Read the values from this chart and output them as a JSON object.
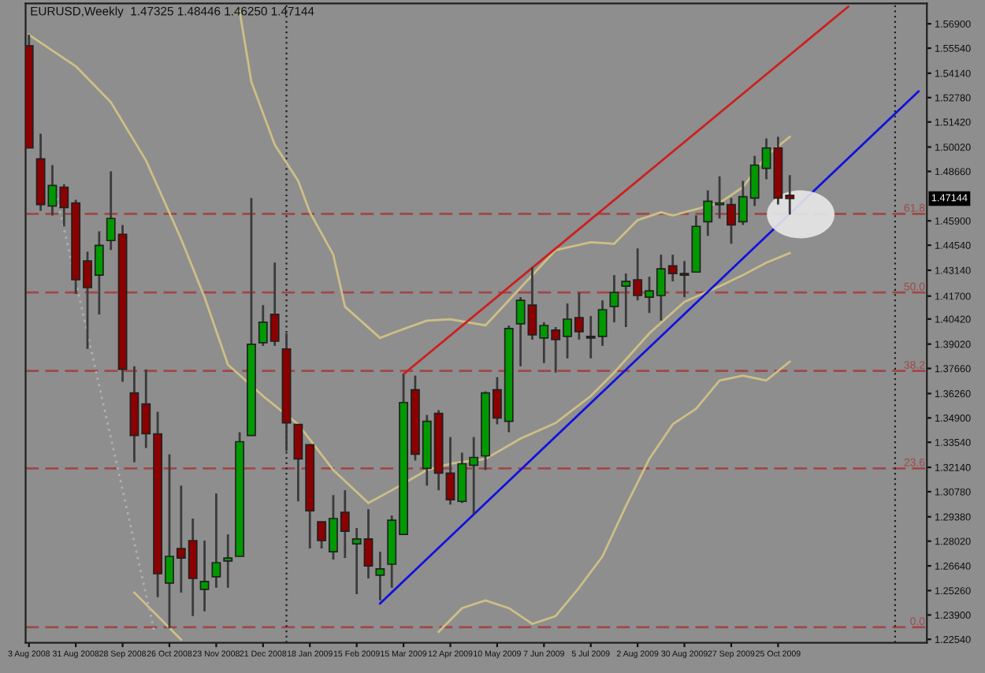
{
  "chart_data": {
    "type": "candlestick",
    "title": "EURUSD,Weekly  1.47325 1.48446 1.46250 1.47144",
    "x": [
      "2008-08-03",
      "2008-08-10",
      "2008-08-17",
      "2008-08-24",
      "2008-08-31",
      "2008-09-07",
      "2008-09-14",
      "2008-09-21",
      "2008-09-28",
      "2008-10-05",
      "2008-10-12",
      "2008-10-19",
      "2008-10-26",
      "2008-11-02",
      "2008-11-09",
      "2008-11-16",
      "2008-11-23",
      "2008-11-30",
      "2008-12-07",
      "2008-12-14",
      "2008-12-21",
      "2008-12-28",
      "2009-01-04",
      "2009-01-11",
      "2009-01-18",
      "2009-01-25",
      "2009-02-01",
      "2009-02-08",
      "2009-02-15",
      "2009-02-22",
      "2009-03-01",
      "2009-03-08",
      "2009-03-15",
      "2009-03-22",
      "2009-03-29",
      "2009-04-05",
      "2009-04-12",
      "2009-04-19",
      "2009-04-26",
      "2009-05-03",
      "2009-05-10",
      "2009-05-17",
      "2009-05-24",
      "2009-05-31",
      "2009-06-07",
      "2009-06-14",
      "2009-06-21",
      "2009-06-28",
      "2009-07-05",
      "2009-07-12",
      "2009-07-19",
      "2009-07-26",
      "2009-08-02",
      "2009-08-09",
      "2009-08-16",
      "2009-08-23",
      "2009-08-30",
      "2009-09-06",
      "2009-09-13",
      "2009-09-20",
      "2009-09-27",
      "2009-10-04",
      "2009-10-11",
      "2009-10-18",
      "2009-10-25",
      "2009-11-01"
    ],
    "ohlc": [
      [
        1.5567,
        1.5629,
        1.4997,
        1.4997
      ],
      [
        1.4936,
        1.5076,
        1.4646,
        1.4681
      ],
      [
        1.4673,
        1.4901,
        1.462,
        1.4787
      ],
      [
        1.4778,
        1.4795,
        1.4559,
        1.4664
      ],
      [
        1.469,
        1.4708,
        1.4182,
        1.4261
      ],
      [
        1.4366,
        1.4418,
        1.3875,
        1.4217
      ],
      [
        1.4287,
        1.4532,
        1.4068,
        1.4453
      ],
      [
        1.448,
        1.4866,
        1.4427,
        1.4603
      ],
      [
        1.4515,
        1.4567,
        1.3691,
        1.3761
      ],
      [
        1.3629,
        1.3778,
        1.3243,
        1.3392
      ],
      [
        1.3568,
        1.3761,
        1.3322,
        1.3401
      ],
      [
        1.3401,
        1.3524,
        1.2489,
        1.2621
      ],
      [
        1.2568,
        1.3287,
        1.2314,
        1.2717
      ],
      [
        1.2761,
        1.3112,
        1.2515,
        1.2708
      ],
      [
        1.2805,
        1.2928,
        1.2384,
        1.2594
      ],
      [
        1.2533,
        1.2805,
        1.241,
        1.2577
      ],
      [
        1.2603,
        1.3068,
        1.2542,
        1.2682
      ],
      [
        1.2691,
        1.284,
        1.2542,
        1.2708
      ],
      [
        1.2717,
        1.341,
        1.2717,
        1.3357
      ],
      [
        1.3392,
        1.4717,
        1.3392,
        1.3901
      ],
      [
        1.391,
        1.412,
        1.3892,
        1.4024
      ],
      [
        1.4068,
        1.4357,
        1.3892,
        1.3918
      ],
      [
        1.3875,
        1.3962,
        1.3305,
        1.3462
      ],
      [
        1.3454,
        1.3454,
        1.3024,
        1.3261
      ],
      [
        1.334,
        1.334,
        1.2761,
        1.2971
      ],
      [
        1.291,
        1.291,
        1.2761,
        1.2805
      ],
      [
        1.2743,
        1.3059,
        1.2699,
        1.2928
      ],
      [
        1.2963,
        1.3086,
        1.2708,
        1.2857
      ],
      [
        1.2787,
        1.2875,
        1.2506,
        1.2814
      ],
      [
        1.2814,
        1.298,
        1.2594,
        1.2664
      ],
      [
        1.2612,
        1.2743,
        1.2471,
        1.2647
      ],
      [
        1.2673,
        1.2945,
        1.2542,
        1.2919
      ],
      [
        1.284,
        1.3734,
        1.284,
        1.3576
      ],
      [
        1.3647,
        1.3726,
        1.3252,
        1.3287
      ],
      [
        1.3208,
        1.3506,
        1.3112,
        1.3471
      ],
      [
        1.3515,
        1.3533,
        1.3086,
        1.3182
      ],
      [
        1.3182,
        1.3383,
        1.3006,
        1.3033
      ],
      [
        1.3024,
        1.3296,
        1.3015,
        1.3234
      ],
      [
        1.3226,
        1.3383,
        1.2954,
        1.3269
      ],
      [
        1.3278,
        1.3638,
        1.3199,
        1.3629
      ],
      [
        1.3647,
        1.3717,
        1.3454,
        1.3489
      ],
      [
        1.3471,
        1.4006,
        1.341,
        1.3989
      ],
      [
        1.4015,
        1.4164,
        1.3778,
        1.4146
      ],
      [
        1.412,
        1.4331,
        1.3927,
        1.3954
      ],
      [
        1.3936,
        1.4024,
        1.3796,
        1.4006
      ],
      [
        1.398,
        1.3997,
        1.3743,
        1.3927
      ],
      [
        1.3945,
        1.4129,
        1.3822,
        1.4041
      ],
      [
        1.405,
        1.419,
        1.3927,
        1.3971
      ],
      [
        1.3945,
        1.4059,
        1.3822,
        1.3936
      ],
      [
        1.3945,
        1.4146,
        1.3892,
        1.4094
      ],
      [
        1.4112,
        1.4287,
        1.4024,
        1.419
      ],
      [
        1.4225,
        1.4296,
        1.3997,
        1.4252
      ],
      [
        1.4261,
        1.4436,
        1.4146,
        1.4173
      ],
      [
        1.4164,
        1.4278,
        1.4076,
        1.4199
      ],
      [
        1.4173,
        1.4401,
        1.4033,
        1.4322
      ],
      [
        1.4339,
        1.4401,
        1.4252,
        1.4296
      ],
      [
        1.4296,
        1.4366,
        1.4164,
        1.4287
      ],
      [
        1.4304,
        1.462,
        1.4304,
        1.4559
      ],
      [
        1.4585,
        1.476,
        1.4506,
        1.4699
      ],
      [
        1.4681,
        1.4839,
        1.4603,
        1.469
      ],
      [
        1.4681,
        1.4717,
        1.4462,
        1.4567
      ],
      [
        1.4585,
        1.4813,
        1.4567,
        1.4725
      ],
      [
        1.4717,
        1.4953,
        1.4673,
        1.4901
      ],
      [
        1.4883,
        1.505,
        1.4822,
        1.4997
      ],
      [
        1.4997,
        1.5059,
        1.4681,
        1.4717
      ],
      [
        1.47325,
        1.48446,
        1.4625,
        1.47144
      ]
    ],
    "colors": [
      "#8b0000",
      "#8b0000",
      "#009900",
      "#8b0000",
      "#8b0000",
      "#8b0000",
      "#009900",
      "#009900",
      "#8b0000",
      "#8b0000",
      "#8b0000",
      "#8b0000",
      "#009900",
      "#8b0000",
      "#8b0000",
      "#009900",
      "#009900",
      "#009900",
      "#009900",
      "#009900",
      "#009900",
      "#8b0000",
      "#8b0000",
      "#8b0000",
      "#8b0000",
      "#8b0000",
      "#009900",
      "#8b0000",
      "#009900",
      "#8b0000",
      "#009900",
      "#009900",
      "#009900",
      "#8b0000",
      "#009900",
      "#8b0000",
      "#8b0000",
      "#009900",
      "#009900",
      "#009900",
      "#8b0000",
      "#009900",
      "#009900",
      "#8b0000",
      "#009900",
      "#8b0000",
      "#009900",
      "#8b0000",
      "#8b0000",
      "#009900",
      "#009900",
      "#009900",
      "#8b0000",
      "#009900",
      "#009900",
      "#8b0000",
      "#8b0000",
      "#009900",
      "#009900",
      "#009900",
      "#8b0000",
      "#009900",
      "#009900",
      "#009900",
      "#8b0000",
      "#8b0000"
    ],
    "series": [
      {
        "type": "line",
        "color": "#cdbf86",
        "x": [
          "2008-12-07",
          "2008-12-14",
          "2008-12-28",
          "2009-01-11",
          "2009-01-18",
          "2009-02-01",
          "2009-02-08",
          "2009-03-01",
          "2009-03-08",
          "2009-03-29",
          "2009-04-12",
          "2009-05-03",
          "2009-06-14",
          "2009-07-05",
          "2009-07-19",
          "2009-08-02",
          "2009-08-16",
          "2009-08-23",
          "2009-09-20",
          "2009-10-04",
          "2009-10-18",
          "2009-11-01"
        ],
        "values": [
          1.576,
          1.5366,
          1.5015,
          1.4813,
          1.4638,
          1.4401,
          1.4111,
          1.3936,
          1.3962,
          1.4033,
          1.4041,
          1.4006,
          1.4427,
          1.4471,
          1.4462,
          1.4594,
          1.4638,
          1.462,
          1.469,
          1.4778,
          1.4953,
          1.5059
        ]
      },
      {
        "type": "line",
        "color": "#cdbf86",
        "x": [
          "2008-08-03",
          "2008-08-31",
          "2008-09-21",
          "2008-10-12",
          "2008-11-02",
          "2008-11-16",
          "2008-11-30",
          "2008-12-21",
          "2009-01-11",
          "2009-02-01",
          "2009-02-22",
          "2009-03-08",
          "2009-03-29",
          "2009-04-12",
          "2009-05-03",
          "2009-05-24",
          "2009-06-14",
          "2009-07-05",
          "2009-07-19",
          "2009-08-09",
          "2009-08-30",
          "2009-09-20",
          "2009-10-04",
          "2009-10-18",
          "2009-11-01"
        ],
        "values": [
          1.5629,
          1.5453,
          1.5252,
          1.4927,
          1.4489,
          1.4164,
          1.3787,
          1.3612,
          1.3454,
          1.3199,
          1.3015,
          1.3086,
          1.3199,
          1.3234,
          1.3261,
          1.3375,
          1.3462,
          1.3612,
          1.3743,
          1.3962,
          1.4138,
          1.4225,
          1.4287,
          1.4357,
          1.441
        ]
      },
      {
        "type": "line",
        "color": "#cdbf86",
        "x": [
          "2008-10-05",
          "2008-10-19",
          "2008-11-02",
          "2008-11-09",
          "2009-04-05",
          "2009-04-19",
          "2009-05-03",
          "2009-05-17",
          "2009-05-31",
          "2009-06-14",
          "2009-06-28",
          "2009-07-12",
          "2009-07-26",
          "2009-08-09",
          "2009-08-23",
          "2009-09-06",
          "2009-09-20",
          "2009-10-04",
          "2009-10-18",
          "2009-11-01"
        ],
        "values": [
          1.2515,
          1.2384,
          1.2252,
          null,
          1.2296,
          1.2428,
          1.2471,
          1.2428,
          1.234,
          1.2384,
          1.2542,
          1.2717,
          1.2998,
          1.3261,
          1.3454,
          1.3541,
          1.3699,
          1.3726,
          1.3699,
          1.3804
        ]
      },
      {
        "type": "line",
        "color": "#b0b0b0",
        "line_style": "dotted",
        "x": [
          "2008-08-19",
          "2008-10-17"
        ],
        "values": [
          1.4752,
          1.2296
        ]
      },
      {
        "type": "line",
        "color": "#cc2020",
        "x": [
          "2009-03-15",
          "2009-12-06"
        ],
        "values": [
          1.3734,
          1.5786
        ]
      },
      {
        "type": "line",
        "color": "#1010e0",
        "x": [
          "2009-03-01",
          "2010-01-17"
        ],
        "values": [
          1.2454,
          1.5313
        ]
      }
    ],
    "xlim": [
      "2008-08-01",
      "2010-01-22"
    ],
    "ylim": [
      1.2235,
      1.5804
    ],
    "xticks": [
      {
        "value": "2008-08-03",
        "label": "3 Aug 2008"
      },
      {
        "value": "2008-08-31",
        "label": "31 Aug 2008"
      },
      {
        "value": "2008-09-28",
        "label": "28 Sep 2008"
      },
      {
        "value": "2008-10-26",
        "label": "26 Oct 2008"
      },
      {
        "value": "2008-11-23",
        "label": "23 Nov 2008"
      },
      {
        "value": "2008-12-21",
        "label": "21 Dec 2008"
      },
      {
        "value": "2009-01-18",
        "label": "18 Jan 2009"
      },
      {
        "value": "2009-02-15",
        "label": "15 Feb 2009"
      },
      {
        "value": "2009-03-15",
        "label": "15 Mar 2009"
      },
      {
        "value": "2009-04-12",
        "label": "12 Apr 2009"
      },
      {
        "value": "2009-05-10",
        "label": "10 May 2009"
      },
      {
        "value": "2009-06-07",
        "label": "7 Jun 2009"
      },
      {
        "value": "2009-07-05",
        "label": "5 Jul 2009"
      },
      {
        "value": "2009-08-02",
        "label": "2 Aug 2009"
      },
      {
        "value": "2009-08-30",
        "label": "30 Aug 2009"
      },
      {
        "value": "2009-09-27",
        "label": "27 Sep 2009"
      },
      {
        "value": "2009-10-25",
        "label": "25 Oct 2009"
      }
    ],
    "yticks": [
      {
        "value": 1.569,
        "label": "1.56900"
      },
      {
        "value": 1.5554,
        "label": "1.55540"
      },
      {
        "value": 1.5414,
        "label": "1.54140"
      },
      {
        "value": 1.5278,
        "label": "1.52780"
      },
      {
        "value": 1.5142,
        "label": "1.51420"
      },
      {
        "value": 1.5002,
        "label": "1.50020"
      },
      {
        "value": 1.4866,
        "label": "1.48660"
      },
      {
        "value": 1.459,
        "label": "1.45900"
      },
      {
        "value": 1.4454,
        "label": "1.44540"
      },
      {
        "value": 1.4314,
        "label": "1.43140"
      },
      {
        "value": 1.417,
        "label": "1.41700"
      },
      {
        "value": 1.4042,
        "label": "1.40420"
      },
      {
        "value": 1.3902,
        "label": "1.39020"
      },
      {
        "value": 1.3766,
        "label": "1.37660"
      },
      {
        "value": 1.3626,
        "label": "1.36260"
      },
      {
        "value": 1.349,
        "label": "1.34900"
      },
      {
        "value": 1.3354,
        "label": "1.33540"
      },
      {
        "value": 1.3214,
        "label": "1.32140"
      },
      {
        "value": 1.3078,
        "label": "1.30780"
      },
      {
        "value": 1.2938,
        "label": "1.29380"
      },
      {
        "value": 1.2802,
        "label": "1.28020"
      },
      {
        "value": 1.2664,
        "label": "1.26640"
      },
      {
        "value": 1.2526,
        "label": "1.25260"
      },
      {
        "value": 1.239,
        "label": "1.23900"
      },
      {
        "value": 1.2254,
        "label": "1.22540"
      }
    ],
    "ref_lines": [
      {
        "axis": "y",
        "value": 1.4629,
        "color": "#a04848",
        "line_style": "dashed"
      },
      {
        "axis": "y",
        "value": 1.419,
        "color": "#a04848",
        "line_style": "dashed"
      },
      {
        "axis": "y",
        "value": 1.3752,
        "color": "#a04848",
        "line_style": "dashed"
      },
      {
        "axis": "y",
        "value": 1.3208,
        "color": "#a04848",
        "line_style": "dashed"
      },
      {
        "axis": "y",
        "value": 1.2322,
        "color": "#a04848",
        "line_style": "dashed"
      },
      {
        "axis": "x",
        "value": "2009-01-04",
        "color": "#202020",
        "line_style": "dotted"
      },
      {
        "axis": "x",
        "value": "2010-01-03",
        "color": "#202020",
        "line_style": "dotted"
      }
    ],
    "annotations": [
      "1.47144",
      {
        "text": "61.8",
        "y": 1.4629
      },
      {
        "text": "50.0",
        "y": 1.419
      },
      {
        "text": "38.2",
        "y": 1.3752
      },
      {
        "text": "23.6",
        "y": 1.3208
      },
      {
        "text": "0.0",
        "y": 1.2322
      }
    ]
  }
}
